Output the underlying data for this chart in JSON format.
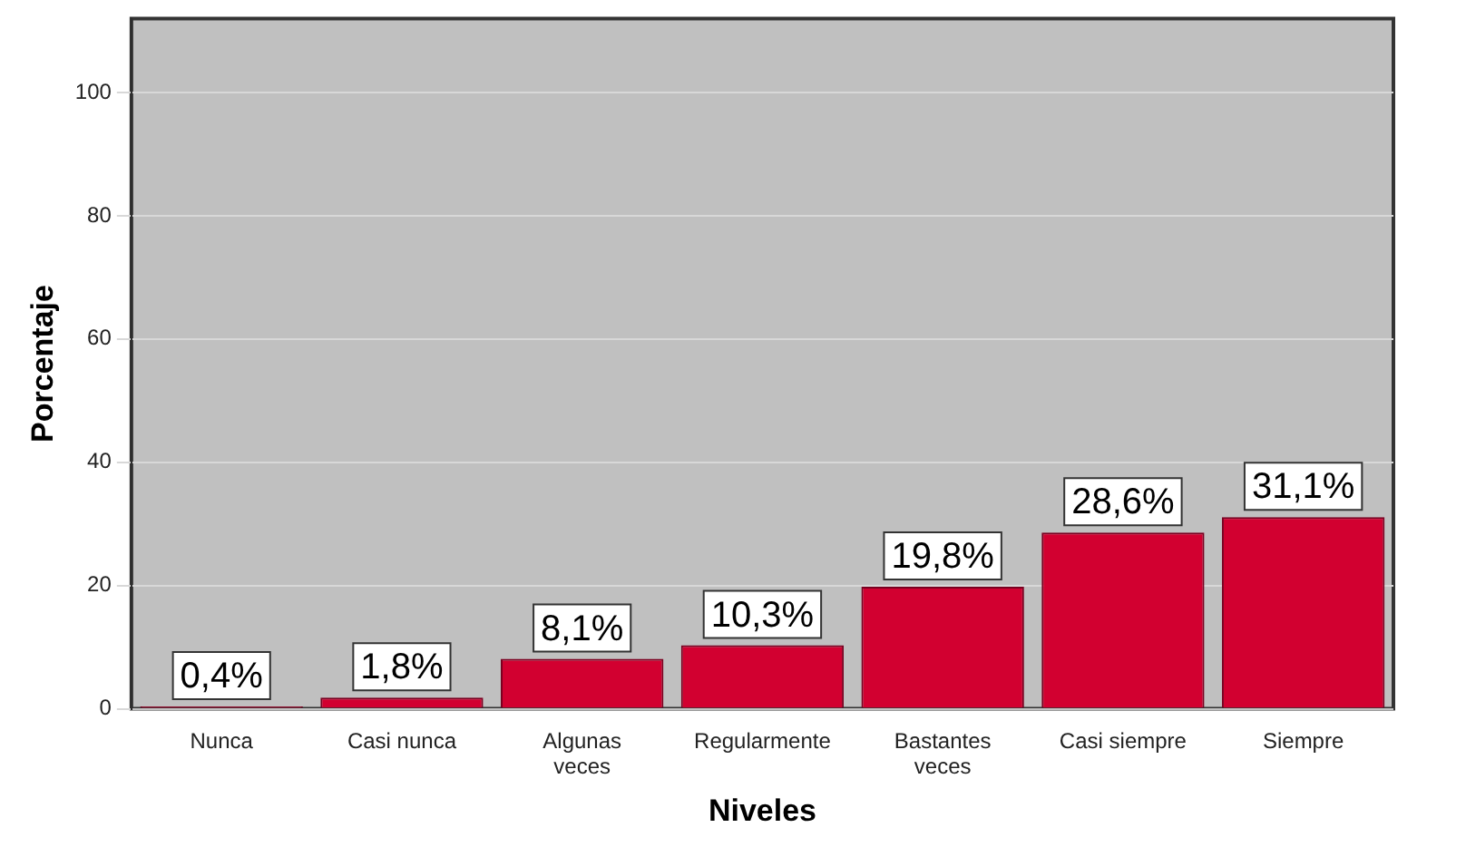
{
  "chart_data": {
    "type": "bar",
    "xlabel": "Niveles",
    "ylabel": "Porcentaje",
    "categories": [
      "Nunca",
      "Casi nunca",
      "Algunas veces",
      "Regularmente",
      "Bastantes veces",
      "Casi siempre",
      "Siempre"
    ],
    "values": [
      0.4,
      1.8,
      8.1,
      10.3,
      19.8,
      28.6,
      31.1
    ],
    "value_labels": [
      "0,4%",
      "1,8%",
      "8,1%",
      "10,3%",
      "19,8%",
      "28,6%",
      "31,1%"
    ],
    "color": "#d20030",
    "ylim": [
      0,
      112
    ],
    "yticks": [
      0,
      20,
      40,
      60,
      80,
      100
    ],
    "grid": "y",
    "legend": false
  }
}
